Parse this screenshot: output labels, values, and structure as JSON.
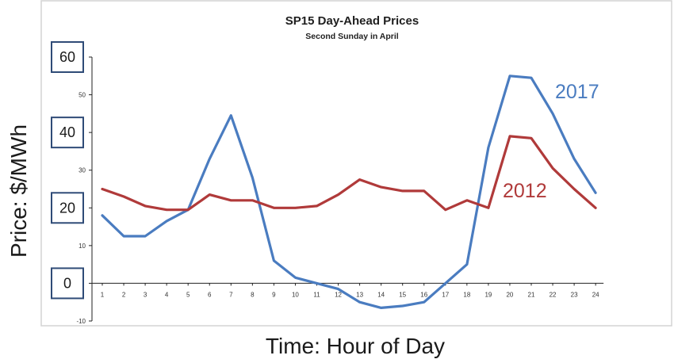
{
  "chart_data": {
    "type": "line",
    "title": "SP15 Day-Ahead Prices",
    "subtitle": "Second Sunday in April",
    "xlabel": "Time: Hour of Day",
    "ylabel": "Price: $/MWh",
    "x": [
      1,
      2,
      3,
      4,
      5,
      6,
      7,
      8,
      9,
      10,
      11,
      12,
      13,
      14,
      15,
      16,
      17,
      18,
      19,
      20,
      21,
      22,
      23,
      24
    ],
    "ylim": [
      -10,
      60
    ],
    "y_ticks": [
      "-10",
      "0",
      "10",
      "20",
      "30",
      "40",
      "50",
      "60"
    ],
    "y_ticks_boxed": [
      "0",
      "20",
      "40",
      "60"
    ],
    "grid": false,
    "series": [
      {
        "name": "2017",
        "color": "#4a7cc0",
        "values": [
          18,
          12.5,
          12.5,
          16.5,
          19.5,
          33,
          44.5,
          28,
          6,
          1.5,
          0,
          -1.5,
          -5,
          -6.5,
          -6,
          -5,
          0,
          5,
          36,
          55,
          54.5,
          45,
          33,
          24
        ]
      },
      {
        "name": "2012",
        "color": "#b03a3a",
        "values": [
          25,
          23,
          20.5,
          19.5,
          19.5,
          23.5,
          22,
          22,
          20,
          20,
          20.5,
          23.5,
          27.5,
          25.5,
          24.5,
          24.5,
          19.5,
          22,
          20,
          39,
          38.5,
          30.5,
          25,
          20
        ]
      }
    ]
  }
}
